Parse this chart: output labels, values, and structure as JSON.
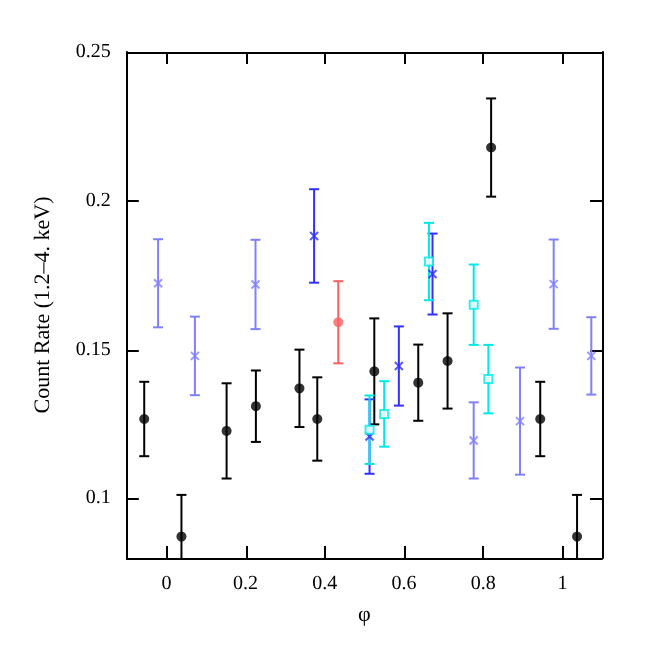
{
  "chart_data": {
    "type": "scatter",
    "xlabel": "φ",
    "ylabel": "Count Rate (1.2–4. keV)",
    "xlim": [
      -0.1,
      1.1
    ],
    "ylim": [
      0.08,
      0.25
    ],
    "xticks": [
      0,
      0.2,
      0.4,
      0.6,
      0.8,
      1
    ],
    "yticks": [
      0.1,
      0.15,
      0.2,
      0.25
    ],
    "series": [
      {
        "color": "#000000",
        "marker": "circle",
        "x": [
          -0.056,
          0.038,
          0.152,
          0.226,
          0.336,
          0.381,
          0.525,
          0.636,
          0.71,
          0.82,
          0.944,
          1.037
        ],
        "values": [
          0.1267,
          0.0872,
          0.1227,
          0.131,
          0.137,
          0.1267,
          0.1427,
          0.1389,
          0.1462,
          0.2179,
          0.1267,
          0.0872
        ],
        "errors": [
          0.0125,
          0.014,
          0.016,
          0.012,
          0.013,
          0.014,
          0.0178,
          0.0128,
          0.016,
          0.0165,
          0.0125,
          0.014
        ]
      },
      {
        "color": "#8080ff",
        "marker": "cross",
        "x": [
          -0.021,
          0.072,
          0.225,
          0.776,
          0.893,
          0.978,
          1.073
        ],
        "values": [
          0.1723,
          0.1479,
          0.1719,
          0.1195,
          0.126,
          0.172,
          0.1479
        ],
        "errors": [
          0.0148,
          0.0132,
          0.015,
          0.0128,
          0.018,
          0.015,
          0.013
        ]
      },
      {
        "color": "#3030ff",
        "marker": "cross",
        "x": [
          0.373,
          0.513,
          0.587,
          0.672
        ],
        "values": [
          0.1882,
          0.1208,
          0.1445,
          0.1754
        ],
        "errors": [
          0.0157,
          0.0125,
          0.0133,
          0.0136
        ]
      },
      {
        "color": "#00e8e8",
        "marker": "square",
        "x": [
          0.513,
          0.55,
          0.663,
          0.776,
          0.813
        ],
        "values": [
          0.1231,
          0.1284,
          0.1796,
          0.1651,
          0.1401
        ],
        "errors": [
          0.0115,
          0.011,
          0.013,
          0.0135,
          0.0115
        ]
      },
      {
        "color": "#ff6060",
        "marker": "circle",
        "x": [
          0.434
        ],
        "values": [
          0.1592
        ],
        "errors": [
          0.0138
        ]
      }
    ]
  }
}
